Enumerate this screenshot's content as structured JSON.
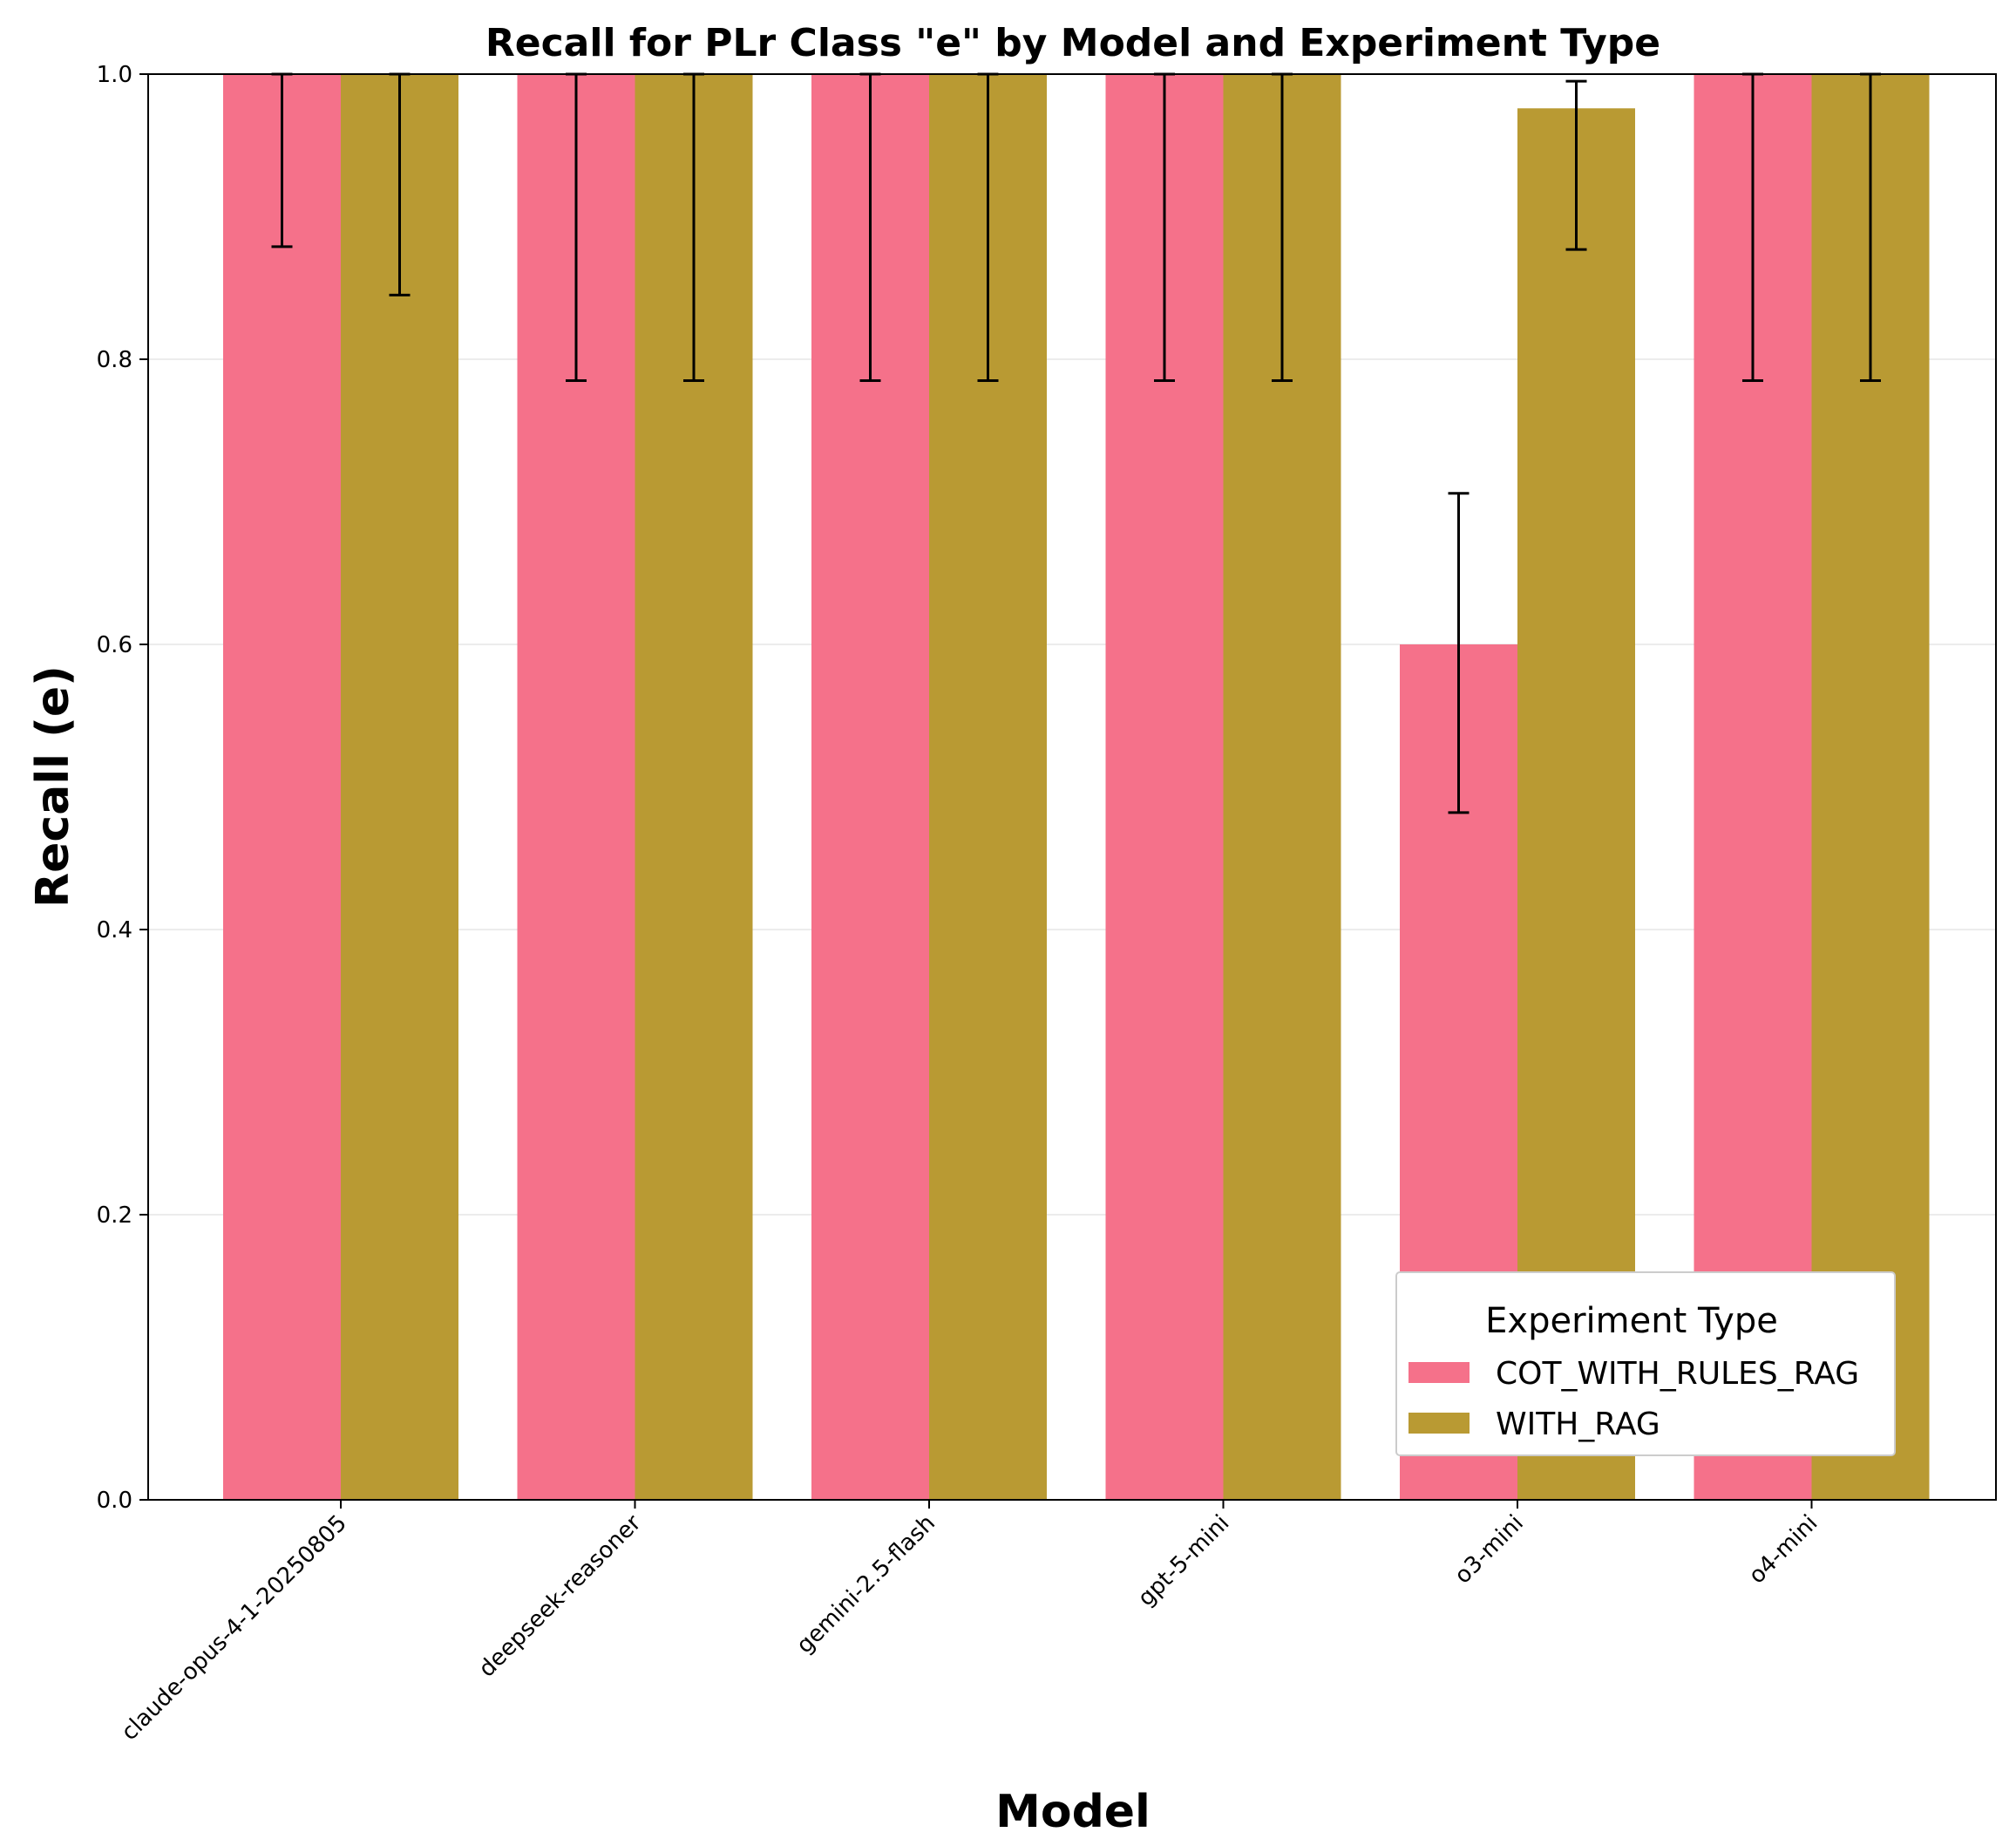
{
  "chart_data": {
    "type": "bar",
    "title": "Recall for PLr Class \"e\" by Model and Experiment Type",
    "xlabel": "Model",
    "ylabel": "Recall (e)",
    "ylim": [
      0.0,
      1.0
    ],
    "yticks": [
      "0.0",
      "0.2",
      "0.4",
      "0.6",
      "0.8",
      "1.0"
    ],
    "grid": "horizontal",
    "categories": [
      "claude-opus-4-1-20250805",
      "deepseek-reasoner",
      "gemini-2.5-flash",
      "gpt-5-mini",
      "o3-mini",
      "o4-mini"
    ],
    "series": [
      {
        "name": "COT_WITH_RULES_RAG",
        "color": "#f5718a",
        "values": [
          1.0,
          1.0,
          1.0,
          1.0,
          0.6,
          1.0
        ],
        "err_low": [
          0.879,
          0.785,
          0.785,
          0.785,
          0.482,
          0.785
        ],
        "err_high": [
          1.0,
          1.0,
          1.0,
          1.0,
          0.706,
          1.0
        ]
      },
      {
        "name": "WITH_RAG",
        "color": "#b99a33",
        "values": [
          1.0,
          1.0,
          1.0,
          1.0,
          0.976,
          1.0
        ],
        "err_low": [
          0.845,
          0.785,
          0.785,
          0.785,
          0.877,
          0.785
        ],
        "err_high": [
          1.0,
          1.0,
          1.0,
          1.0,
          0.995,
          1.0
        ]
      }
    ],
    "legend": {
      "title": "Experiment Type",
      "position": "lower-right"
    }
  }
}
